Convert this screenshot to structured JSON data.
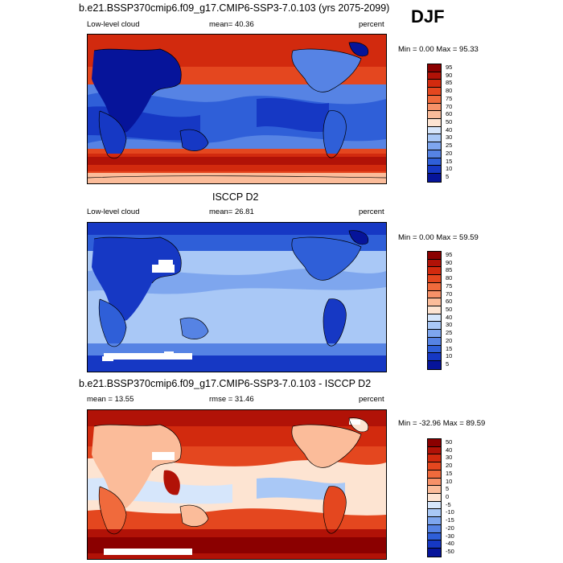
{
  "season": "DJF",
  "panels": [
    {
      "title": "b.e21.BSSP370cmip6.f09_g17.CMIP6-SSP3-7.0.103 (yrs 2075-2099)",
      "variable": "Low-level cloud",
      "stat": "mean=  40.36",
      "units": "percent",
      "minmax": "Min =   0.00 Max =  95.33",
      "levels": [
        "95",
        "90",
        "85",
        "80",
        "75",
        "70",
        "60",
        "50",
        "40",
        "30",
        "25",
        "20",
        "15",
        "10",
        "5"
      ],
      "colors": [
        "#8b0000",
        "#b11207",
        "#d22a0e",
        "#e4471f",
        "#f06a3c",
        "#f79168",
        "#fbbc9a",
        "#fde4d2",
        "#d6e6fb",
        "#a9c8f6",
        "#7ea6ee",
        "#5683e4",
        "#2f5fd8",
        "#1638c4",
        "#06149a"
      ]
    },
    {
      "title": "ISCCP D2",
      "variable": "Low-level cloud",
      "stat": "mean=  26.81",
      "units": "percent",
      "minmax": "Min =   0.00 Max =  59.59",
      "levels": [
        "95",
        "90",
        "85",
        "80",
        "75",
        "70",
        "60",
        "50",
        "40",
        "30",
        "25",
        "20",
        "15",
        "10",
        "5"
      ],
      "colors": [
        "#8b0000",
        "#b11207",
        "#d22a0e",
        "#e4471f",
        "#f06a3c",
        "#f79168",
        "#fbbc9a",
        "#fde4d2",
        "#d6e6fb",
        "#a9c8f6",
        "#7ea6ee",
        "#5683e4",
        "#2f5fd8",
        "#1638c4",
        "#06149a"
      ]
    },
    {
      "title": "b.e21.BSSP370cmip6.f09_g17.CMIP6-SSP3-7.0.103 - ISCCP D2",
      "variable": "mean =  13.55",
      "stat": "rmse =  31.46",
      "units": "percent",
      "minmax": "Min = -32.96 Max =  89.59",
      "levels": [
        "50",
        "40",
        "30",
        "20",
        "15",
        "10",
        "5",
        "0",
        "-5",
        "-10",
        "-15",
        "-20",
        "-30",
        "-40",
        "-50"
      ],
      "colors": [
        "#8b0000",
        "#b11207",
        "#d22a0e",
        "#e4471f",
        "#f06a3c",
        "#f79168",
        "#fbbc9a",
        "#fde4d2",
        "#d6e6fb",
        "#a9c8f6",
        "#7ea6ee",
        "#5683e4",
        "#2f5fd8",
        "#1638c4",
        "#06149a"
      ]
    }
  ]
}
